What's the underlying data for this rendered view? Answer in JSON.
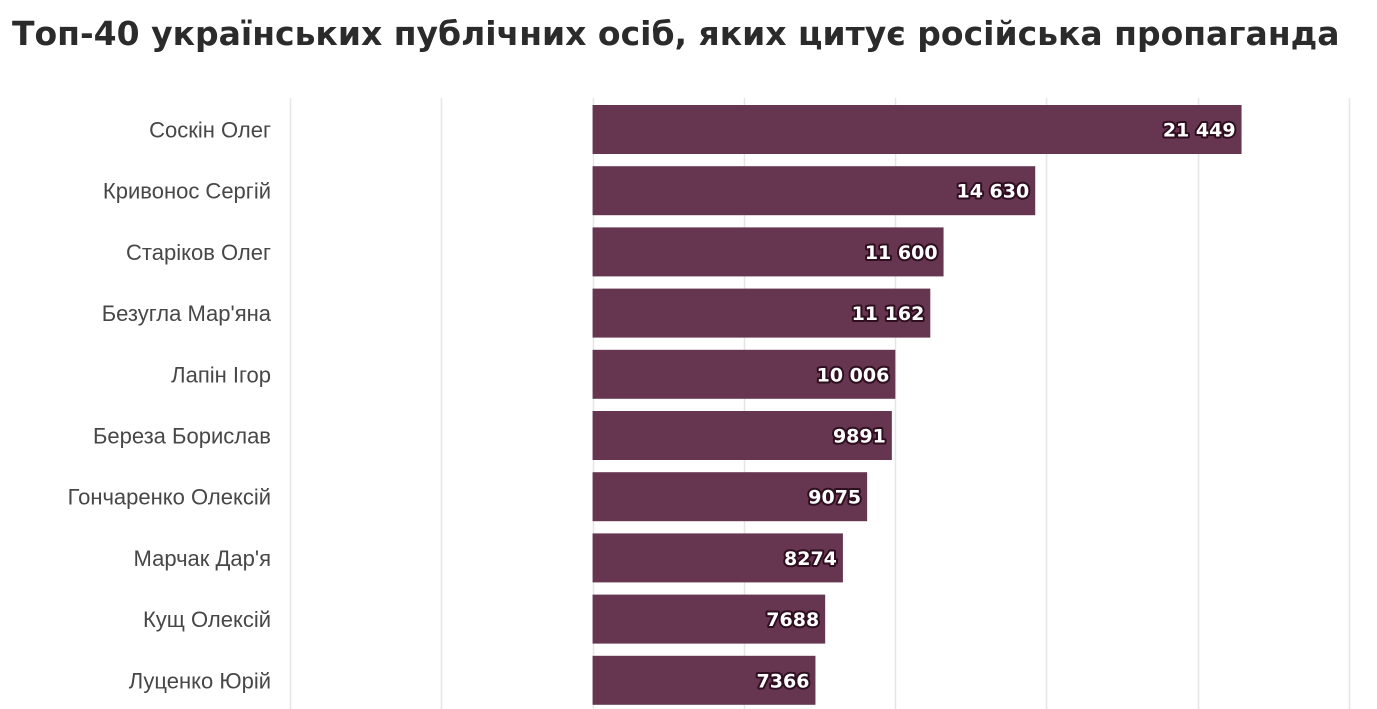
{
  "chart_data": {
    "type": "bar",
    "orientation": "horizontal",
    "title": "Топ-40 українських публічних осіб, яких цитує російська пропаганда",
    "categories": [
      "Соскін Олег",
      "Кривонос Сергій",
      "Старіков Олег",
      "Безугла Мар'яна",
      "Лапін Ігор",
      "Береза Борислав",
      "Гончаренко Олексій",
      "Марчак Дар'я",
      "Кущ Олексій",
      "Луценко Юрій"
    ],
    "values": [
      21449,
      14630,
      11600,
      11162,
      10006,
      9891,
      9075,
      8274,
      7688,
      7366
    ],
    "value_labels": [
      "21 449",
      "14 630",
      "11 600",
      "11 162",
      "10 006",
      "9891",
      "9075",
      "8274",
      "7688",
      "7366"
    ],
    "xlim": [
      -10000,
      25000
    ],
    "gridline_values": [
      -10000,
      -5000,
      0,
      5000,
      10000,
      15000,
      20000,
      25000
    ],
    "grid": true,
    "legend": "none",
    "bar_color": "#663651",
    "gridline_color": "#e6e6e6",
    "label_color": "#474747",
    "title_color": "#2b2b2b"
  }
}
